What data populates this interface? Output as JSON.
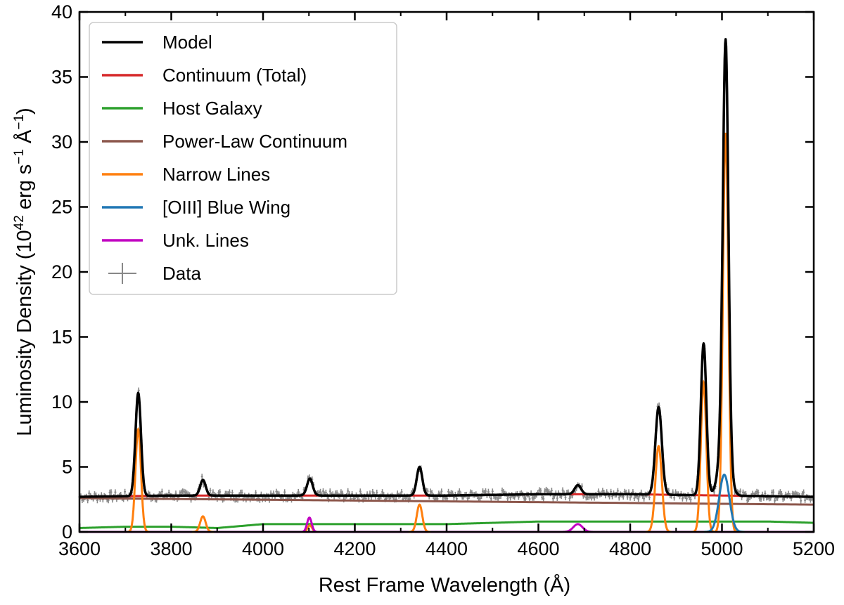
{
  "chart_data": {
    "type": "line",
    "xlabel": "Rest Frame Wavelength (Å)",
    "ylabel_main": "Luminosity Density (10",
    "ylabel_exp1": "42",
    "ylabel_mid": " erg s",
    "ylabel_exp2": "−1",
    "ylabel_end": " Å",
    "ylabel_exp3": "−1",
    "ylabel_close": ")",
    "xlim": [
      3600,
      5200
    ],
    "ylim": [
      0,
      40
    ],
    "x_ticks": [
      "3600",
      "3800",
      "4000",
      "4200",
      "4400",
      "4600",
      "4800",
      "5000",
      "5200"
    ],
    "x_tick_values": [
      3600,
      3800,
      4000,
      4200,
      4400,
      4600,
      4800,
      5000,
      5200
    ],
    "y_ticks": [
      "0",
      "5",
      "10",
      "15",
      "20",
      "25",
      "30",
      "35",
      "40"
    ],
    "y_tick_values": [
      0,
      5,
      10,
      15,
      20,
      25,
      30,
      35,
      40
    ],
    "legend_position": "upper-left",
    "legend": [
      {
        "label": "Model",
        "color": "#000000",
        "kind": "line"
      },
      {
        "label": "Continuum (Total)",
        "color": "#d62728",
        "kind": "line"
      },
      {
        "label": "Host Galaxy",
        "color": "#2ca02c",
        "kind": "line"
      },
      {
        "label": "Power-Law Continuum",
        "color": "#8c564b",
        "kind": "line"
      },
      {
        "label": "Narrow Lines",
        "color": "#ff7f0e",
        "kind": "line"
      },
      {
        "label": "[OIII] Blue Wing",
        "color": "#1f77b4",
        "kind": "line"
      },
      {
        "label": "Unk. Lines",
        "color": "#c000c0",
        "kind": "line"
      },
      {
        "label": "Data",
        "color": "#888888",
        "kind": "errorbar"
      }
    ],
    "continuum_total": {
      "x": [
        3600,
        3800,
        4000,
        4200,
        4400,
        4600,
        4800,
        5000,
        5200
      ],
      "y": [
        2.7,
        2.8,
        2.8,
        2.8,
        2.8,
        2.9,
        2.9,
        2.8,
        2.7
      ]
    },
    "host_galaxy": {
      "x": [
        3600,
        3700,
        3800,
        3900,
        4000,
        4100,
        4200,
        4300,
        4400,
        4500,
        4600,
        4700,
        4800,
        4900,
        5000,
        5100,
        5200
      ],
      "y": [
        0.3,
        0.4,
        0.4,
        0.3,
        0.6,
        0.6,
        0.6,
        0.6,
        0.6,
        0.7,
        0.8,
        0.8,
        0.8,
        0.8,
        0.8,
        0.8,
        0.7
      ]
    },
    "power_law": {
      "x": [
        3600,
        5200
      ],
      "y": [
        2.6,
        2.1
      ]
    },
    "narrow_lines": [
      {
        "center": 3728,
        "amp": 7.9,
        "sigma": 6
      },
      {
        "center": 3869,
        "amp": 1.2,
        "sigma": 6
      },
      {
        "center": 4102,
        "amp": 0.5,
        "sigma": 5
      },
      {
        "center": 4341,
        "amp": 2.1,
        "sigma": 6
      },
      {
        "center": 4862,
        "amp": 6.6,
        "sigma": 7
      },
      {
        "center": 4960,
        "amp": 11.5,
        "sigma": 6
      },
      {
        "center": 5008,
        "amp": 30.7,
        "sigma": 6
      }
    ],
    "oiii_blue_wing": [
      {
        "center": 5005,
        "amp": 4.4,
        "sigma": 11
      }
    ],
    "unk_lines": [
      {
        "center": 4101,
        "amp": 1.1,
        "sigma": 5
      },
      {
        "center": 4686,
        "amp": 0.6,
        "sigma": 10
      }
    ],
    "model_peaks": [
      {
        "center": 3728,
        "peak": 10.7
      },
      {
        "center": 3869,
        "peak": 4.0
      },
      {
        "center": 4102,
        "peak": 4.1
      },
      {
        "center": 4341,
        "peak": 5.0
      },
      {
        "center": 4686,
        "peak": 3.6
      },
      {
        "center": 4862,
        "peak": 9.6
      },
      {
        "center": 4960,
        "peak": 14.5
      },
      {
        "center": 5008,
        "peak": 37.9
      }
    ]
  }
}
